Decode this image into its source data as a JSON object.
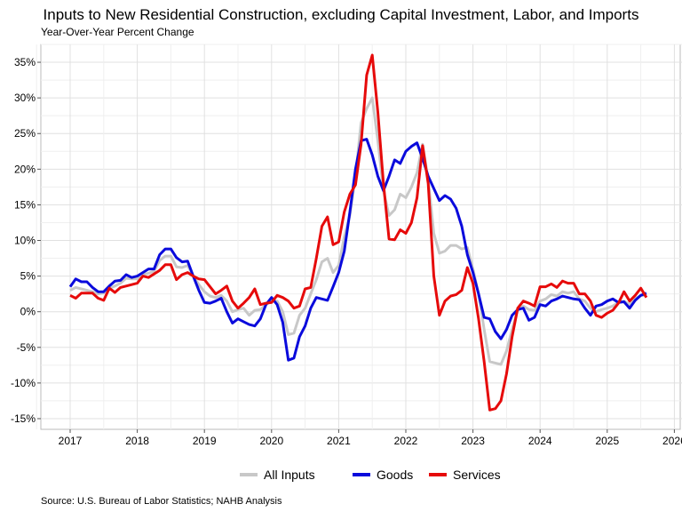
{
  "chart_data": {
    "type": "line",
    "title": "Inputs to New Residential Construction, excluding Capital Investment, Labor, and Imports",
    "subtitle": "Year-Over-Year Percent Change",
    "source": "Source: U.S. Bureau of Labor Statistics; NAHB Analysis",
    "xlabel": "",
    "ylabel": "",
    "start": "2017-01",
    "frequency": "monthly",
    "xlim": [
      2016.6,
      2026.0
    ],
    "ylim": [
      -16.5,
      37.5
    ],
    "x_ticks": [
      "2017",
      "2018",
      "2019",
      "2020",
      "2021",
      "2022",
      "2023",
      "2024",
      "2025",
      "2026"
    ],
    "y_ticks": [
      -15,
      -10,
      -5,
      0,
      5,
      10,
      15,
      20,
      25,
      30,
      35
    ],
    "y_tick_labels": [
      "-15%",
      "-10%",
      "-5%",
      "0%",
      "5%",
      "10%",
      "15%",
      "20%",
      "25%",
      "30%",
      "35%"
    ],
    "grid": true,
    "legend_position": "bottom",
    "series": [
      {
        "name": "All Inputs",
        "color": "#c8c8c8",
        "values": [
          3.0,
          3.4,
          3.2,
          3.0,
          2.8,
          2.5,
          2.6,
          3.3,
          3.6,
          4.0,
          4.7,
          4.6,
          4.6,
          5.2,
          5.4,
          5.7,
          7.2,
          7.8,
          7.8,
          6.3,
          6.2,
          6.5,
          5.0,
          3.8,
          2.8,
          2.2,
          2.0,
          2.3,
          1.5,
          0.0,
          0.3,
          0.5,
          -0.5,
          0.2,
          0.3,
          1.0,
          1.5,
          1.5,
          0.0,
          -3.2,
          -3.0,
          -0.5,
          0.5,
          2.5,
          4.5,
          7.0,
          7.5,
          5.5,
          6.5,
          10.5,
          13.5,
          19,
          26.5,
          28.5,
          30,
          24,
          17,
          13.5,
          14.3,
          16.5,
          16,
          17.5,
          19.5,
          23.5,
          18.5,
          11,
          8.2,
          8.5,
          9.3,
          9.3,
          8.8,
          9.0,
          6,
          2.5,
          -2.5,
          -7.0,
          -7.2,
          -7.4,
          -5.5,
          -2.5,
          0.3,
          0.8,
          0.3,
          0.2,
          1.5,
          1.8,
          2.4,
          2.2,
          2.8,
          2.6,
          2.8,
          1.8,
          1.5,
          0.5,
          0.0,
          0.3,
          0.5,
          0.8,
          1.3,
          1.5,
          1.0,
          1.8,
          2.3,
          2.3
        ]
      },
      {
        "name": "Goods",
        "color": "#0a0adc",
        "values": [
          3.5,
          4.6,
          4.2,
          4.2,
          3.4,
          2.8,
          2.8,
          3.6,
          4.3,
          4.4,
          5.2,
          4.8,
          5.0,
          5.5,
          6.0,
          6.0,
          8.0,
          8.8,
          8.8,
          7.6,
          7.0,
          7.1,
          5.0,
          3.0,
          1.3,
          1.2,
          1.5,
          1.9,
          0.0,
          -1.6,
          -1.0,
          -1.4,
          -1.8,
          -2.0,
          -1.0,
          1.0,
          2.0,
          1.0,
          -1.5,
          -6.8,
          -6.5,
          -3.5,
          -2.0,
          0.5,
          2.0,
          1.8,
          1.6,
          3.5,
          5.5,
          8.5,
          14,
          20,
          24,
          24.2,
          22,
          19,
          17,
          19,
          21.3,
          20.8,
          22.5,
          23.2,
          23.7,
          21.5,
          19,
          17.3,
          15.6,
          16.3,
          15.8,
          14.5,
          12,
          8,
          5.5,
          2.5,
          -0.8,
          -1.0,
          -2.8,
          -3.8,
          -2.5,
          -0.5,
          0.3,
          0.5,
          -1.2,
          -0.8,
          1.0,
          0.8,
          1.5,
          1.8,
          2.2,
          2.0,
          1.8,
          1.7,
          0.5,
          -0.5,
          0.8,
          1.0,
          1.5,
          1.8,
          1.3,
          1.4,
          0.5,
          1.6,
          2.3,
          2.6
        ]
      },
      {
        "name": "Services",
        "color": "#e60a0a",
        "values": [
          2.3,
          1.9,
          2.6,
          2.6,
          2.6,
          1.9,
          1.6,
          3.3,
          2.7,
          3.4,
          3.6,
          3.8,
          4.0,
          5.0,
          4.8,
          5.3,
          5.8,
          6.6,
          6.6,
          4.5,
          5.2,
          5.5,
          5.0,
          4.6,
          4.5,
          3.5,
          2.5,
          3.0,
          3.6,
          1.5,
          0.5,
          1.2,
          2.0,
          3.2,
          1.0,
          1.2,
          1.3,
          2.3,
          2.0,
          1.5,
          0.5,
          0.8,
          3.2,
          3.4,
          7.5,
          12,
          13.3,
          9.4,
          9.8,
          14,
          16.5,
          17.8,
          23.5,
          33.2,
          36,
          28,
          18,
          10.2,
          10.1,
          11.5,
          11,
          12.5,
          16,
          23.3,
          18,
          5,
          -0.5,
          1.5,
          2.2,
          2.4,
          3.0,
          6.2,
          4,
          -1,
          -7,
          -13.8,
          -13.6,
          -12.5,
          -8.7,
          -3.5,
          0.5,
          1.5,
          1.2,
          0.8,
          3.5,
          3.5,
          3.9,
          3.4,
          4.3,
          4.0,
          4.0,
          2.5,
          2.5,
          1.5,
          -0.5,
          -0.8,
          -0.2,
          0.2,
          1.2,
          2.8,
          1.5,
          2.3,
          3.3,
          2.0
        ]
      }
    ]
  }
}
